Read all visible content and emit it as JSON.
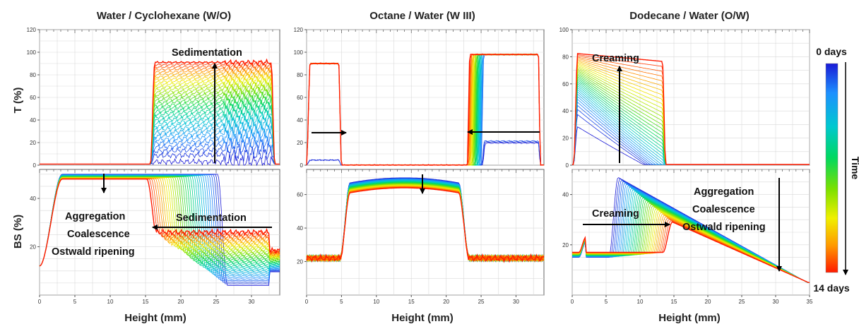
{
  "figure": {
    "column_titles": [
      "Water / Cyclohexane (W/O)",
      "Octane / Water (W III)",
      "Dodecane / Water (O/W)"
    ],
    "row_labels": [
      "T (%)",
      "BS (%)"
    ],
    "x_label": "Height (mm)",
    "colorbar": {
      "top_label": "0 days",
      "bottom_label": "14 days",
      "axis_label": "Time",
      "colors_top_to_bottom": [
        "#1a1ad6",
        "#1e90ff",
        "#00c8d0",
        "#00d860",
        "#7be000",
        "#f0f000",
        "#ff9a00",
        "#ff1a00"
      ]
    }
  },
  "chart_data": [
    {
      "id": "wo_T",
      "type": "line",
      "xlim": [
        0,
        34
      ],
      "ylim": [
        0,
        120
      ],
      "x_ticks": [],
      "y_ticks": [
        0,
        20,
        40,
        60,
        80,
        100,
        120
      ],
      "annotations": [
        {
          "text": "Sedimentation"
        }
      ],
      "curves": {
        "kind": "wo_T",
        "x_start": 16,
        "x_end": 33,
        "plateau_final": 93,
        "initial": 1
      }
    },
    {
      "id": "w3_T",
      "type": "line",
      "xlim": [
        0,
        34
      ],
      "ylim": [
        0,
        120
      ],
      "x_ticks": [],
      "y_ticks": [
        0,
        20,
        40,
        60,
        80,
        100,
        120
      ],
      "annotations": [],
      "curves": {
        "kind": "w3_T",
        "left_band": [
          0,
          5
        ],
        "right_band": [
          23,
          33.5
        ],
        "plateau_left": 90,
        "plateau_right": 98
      }
    },
    {
      "id": "ow_T",
      "type": "line",
      "xlim": [
        0,
        35
      ],
      "ylim": [
        0,
        100
      ],
      "x_ticks": [],
      "y_ticks": [
        0,
        20,
        40,
        60,
        80,
        100
      ],
      "annotations": [
        {
          "text": "Creaming"
        }
      ],
      "curves": {
        "kind": "ow_T",
        "x_start": 0.5,
        "x_end": 13.5,
        "plateau_final": 76
      }
    },
    {
      "id": "wo_BS",
      "type": "line",
      "xlim": [
        0,
        34
      ],
      "ylim": [
        0,
        52
      ],
      "x_ticks": [
        0,
        5,
        10,
        15,
        20,
        25,
        30
      ],
      "y_ticks": [
        20,
        40
      ],
      "annotations": [
        {
          "text": "Aggregation"
        },
        {
          "text": "Coalescence"
        },
        {
          "text": "Ostwald ripening"
        },
        {
          "text": "Sedimentation"
        }
      ],
      "curves": {
        "kind": "wo_BS",
        "front": 16,
        "top_level": 50,
        "bottom_level": 26
      }
    },
    {
      "id": "w3_BS",
      "type": "line",
      "xlim": [
        0,
        34
      ],
      "ylim": [
        0,
        75
      ],
      "x_ticks": [
        0,
        5,
        10,
        15,
        20,
        25,
        30
      ],
      "y_ticks": [
        20,
        40,
        60
      ],
      "annotations": [],
      "curves": {
        "kind": "w3_BS",
        "middle_band": [
          5,
          23
        ],
        "peak": 70
      }
    },
    {
      "id": "ow_BS",
      "type": "line",
      "xlim": [
        0,
        35
      ],
      "ylim": [
        0,
        50
      ],
      "x_ticks": [
        0,
        5,
        10,
        15,
        20,
        25,
        30,
        35
      ],
      "y_ticks": [
        20,
        40
      ],
      "annotations": [
        {
          "text": "Creaming"
        },
        {
          "text": "Aggregation"
        },
        {
          "text": "Coalescence"
        },
        {
          "text": "Ostwald ripening"
        }
      ],
      "curves": {
        "kind": "ow_BS",
        "front": 14,
        "peak": 48,
        "floor": 17
      }
    }
  ]
}
